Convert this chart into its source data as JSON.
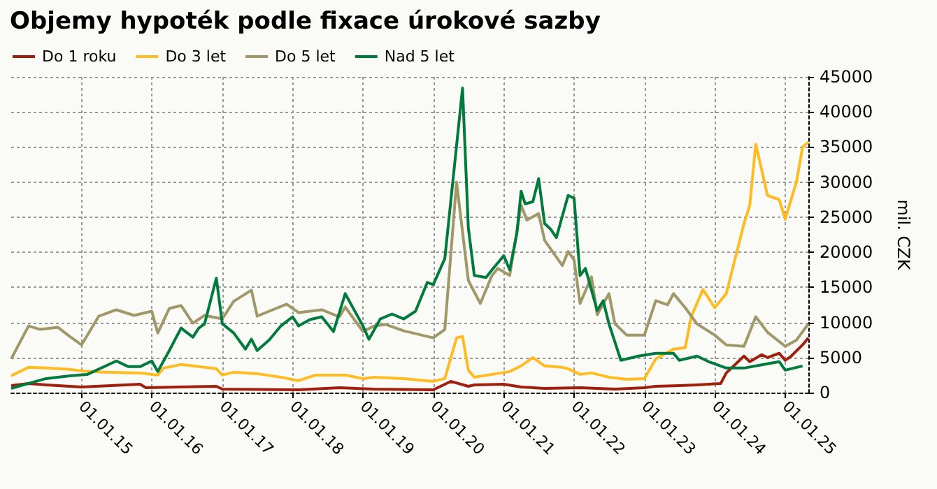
{
  "chart_data": {
    "type": "line",
    "title": "Objemy hypoték podle fixace úrokové sazby",
    "ylabel": "mil. CZK",
    "xlim": [
      "2014-01",
      "2025-05"
    ],
    "xticks": [
      {
        "value": "2015-01-01",
        "label": "01.01.15"
      },
      {
        "value": "2016-01-01",
        "label": "01.01.16"
      },
      {
        "value": "2017-01-01",
        "label": "01.01.17"
      },
      {
        "value": "2018-01-01",
        "label": "01.01.18"
      },
      {
        "value": "2019-01-01",
        "label": "01.01.19"
      },
      {
        "value": "2020-01-01",
        "label": "01.01.20"
      },
      {
        "value": "2021-01-01",
        "label": "01.01.21"
      },
      {
        "value": "2022-01-01",
        "label": "01.01.22"
      },
      {
        "value": "2023-01-01",
        "label": "01.01.23"
      },
      {
        "value": "2024-01-01",
        "label": "01.01.24"
      },
      {
        "value": "2025-01-01",
        "label": "01.01.25"
      }
    ],
    "ylim": [
      0,
      45000
    ],
    "yticks": [
      0,
      5000,
      10000,
      15000,
      20000,
      25000,
      30000,
      35000,
      40000,
      45000
    ],
    "grid": true,
    "legend": "top left",
    "marker": "none",
    "line_style": "solid",
    "series": [
      {
        "name": "Do 1 roku",
        "color": "#a02010",
        "x": [
          "2014-01",
          "2014-04",
          "2014-07",
          "2015-01",
          "2015-11",
          "2015-12",
          "2016-12",
          "2017-01",
          "2018-02",
          "2018-09",
          "2019-03",
          "2020-01",
          "2020-04",
          "2020-07",
          "2020-08",
          "2021-01",
          "2021-04",
          "2021-08",
          "2022-02",
          "2022-08",
          "2023-01",
          "2023-03",
          "2023-07",
          "2023-10",
          "2024-02",
          "2024-03",
          "2024-06",
          "2024-07",
          "2024-09",
          "2024-10",
          "2024-12",
          "2025-01",
          "2025-02",
          "2025-04",
          "2025-05"
        ],
        "values": [
          1000,
          1300,
          1100,
          800,
          1200,
          700,
          900,
          500,
          400,
          700,
          500,
          400,
          1600,
          900,
          1100,
          1200,
          800,
          600,
          700,
          500,
          700,
          900,
          1000,
          1100,
          1300,
          2800,
          5200,
          4400,
          5400,
          5000,
          5600,
          4600,
          5200,
          6800,
          7800
        ]
      },
      {
        "name": "Do 3 let",
        "color": "#ffbb22",
        "x": [
          "2014-01",
          "2014-04",
          "2014-07",
          "2014-11",
          "2015-02",
          "2015-05",
          "2015-11",
          "2016-02",
          "2016-03",
          "2016-06",
          "2016-10",
          "2016-12",
          "2017-01",
          "2017-03",
          "2017-07",
          "2017-11",
          "2018-02",
          "2018-05",
          "2018-10",
          "2019-01",
          "2019-03",
          "2019-08",
          "2020-01",
          "2020-03",
          "2020-05",
          "2020-06",
          "2020-07",
          "2020-08",
          "2020-11",
          "2021-02",
          "2021-04",
          "2021-06",
          "2021-08",
          "2021-11",
          "2021-12",
          "2022-02",
          "2022-04",
          "2022-07",
          "2022-10",
          "2023-01",
          "2023-03",
          "2023-06",
          "2023-08",
          "2023-09",
          "2023-11",
          "2024-01",
          "2024-03",
          "2024-06",
          "2024-07",
          "2024-08",
          "2024-10",
          "2024-12",
          "2025-01",
          "2025-03",
          "2025-04",
          "2025-05"
        ],
        "values": [
          2400,
          3600,
          3500,
          3300,
          3000,
          2900,
          2800,
          2500,
          3500,
          4000,
          3600,
          3400,
          2500,
          2900,
          2700,
          2200,
          1700,
          2500,
          2500,
          2000,
          2200,
          2000,
          1600,
          2000,
          7800,
          8000,
          3200,
          2200,
          2600,
          3000,
          3800,
          5000,
          3800,
          3600,
          3400,
          2600,
          2800,
          2200,
          1900,
          2000,
          4800,
          6200,
          6400,
          10800,
          14700,
          12100,
          14100,
          24100,
          26700,
          35400,
          28100,
          27500,
          24700,
          30100,
          35000,
          35700
        ]
      },
      {
        "name": "Do 5 let",
        "color": "#a09868",
        "x": [
          "2014-01",
          "2014-04",
          "2014-06",
          "2014-09",
          "2014-11",
          "2015-01",
          "2015-04",
          "2015-07",
          "2015-10",
          "2016-01",
          "2016-02",
          "2016-04",
          "2016-06",
          "2016-08",
          "2016-10",
          "2017-01",
          "2017-03",
          "2017-06",
          "2017-07",
          "2017-12",
          "2018-02",
          "2018-06",
          "2018-09",
          "2018-10",
          "2019-01",
          "2019-03",
          "2019-05",
          "2019-08",
          "2020-01",
          "2020-03",
          "2020-05",
          "2020-07",
          "2020-09",
          "2020-11",
          "2020-12",
          "2021-02",
          "2021-04",
          "2021-05",
          "2021-07",
          "2021-08",
          "2021-11",
          "2021-12",
          "2022-01",
          "2022-02",
          "2022-04",
          "2022-05",
          "2022-07",
          "2022-08",
          "2022-10",
          "2023-01",
          "2023-03",
          "2023-05",
          "2023-06",
          "2023-08",
          "2023-10",
          "2024-01",
          "2024-03",
          "2024-06",
          "2024-08",
          "2024-10",
          "2025-01",
          "2025-03",
          "2025-05"
        ],
        "values": [
          4800,
          9500,
          9000,
          9300,
          8000,
          6800,
          10900,
          11800,
          11000,
          11600,
          8500,
          12000,
          12400,
          9900,
          11000,
          10500,
          13000,
          14600,
          10900,
          12600,
          11400,
          11800,
          10800,
          12200,
          8700,
          9500,
          9700,
          8800,
          7800,
          9000,
          30000,
          16000,
          12700,
          16700,
          17700,
          16700,
          26700,
          24600,
          25500,
          21700,
          18100,
          20100,
          18900,
          12700,
          16500,
          11100,
          14100,
          9800,
          8200,
          8200,
          13100,
          12500,
          14100,
          12100,
          9800,
          8200,
          6800,
          6600,
          10800,
          8600,
          6600,
          7500,
          9800
        ]
      },
      {
        "name": "Nad 5 let",
        "color": "#007a3d",
        "x": [
          "2014-01",
          "2014-04",
          "2014-07",
          "2014-11",
          "2015-02",
          "2015-07",
          "2015-09",
          "2015-11",
          "2016-01",
          "2016-02",
          "2016-04",
          "2016-06",
          "2016-08",
          "2016-09",
          "2016-10",
          "2016-12",
          "2017-01",
          "2017-03",
          "2017-05",
          "2017-06",
          "2017-07",
          "2017-09",
          "2017-11",
          "2018-01",
          "2018-02",
          "2018-04",
          "2018-06",
          "2018-08",
          "2018-10",
          "2019-01",
          "2019-02",
          "2019-04",
          "2019-06",
          "2019-08",
          "2019-10",
          "2019-12",
          "2020-01",
          "2020-03",
          "2020-06",
          "2020-07",
          "2020-08",
          "2020-10",
          "2020-11",
          "2021-01",
          "2021-02",
          "2021-03-10",
          "2021-04-01",
          "2021-04-22",
          "2021-06",
          "2021-07",
          "2021-08",
          "2021-09",
          "2021-10",
          "2021-12",
          "2022-01",
          "2022-02",
          "2022-03",
          "2022-05",
          "2022-06",
          "2022-07",
          "2022-09",
          "2022-12",
          "2023-03",
          "2023-06",
          "2023-07",
          "2023-10",
          "2023-12",
          "2024-03",
          "2024-06",
          "2024-10",
          "2024-12",
          "2025-01",
          "2025-04"
        ],
        "values": [
          600,
          1300,
          2000,
          2400,
          2600,
          4500,
          3700,
          3700,
          4500,
          3000,
          6000,
          9200,
          7900,
          9200,
          9800,
          16300,
          9800,
          8500,
          6200,
          7600,
          6000,
          7500,
          9500,
          10800,
          9500,
          10400,
          10800,
          8700,
          14100,
          9500,
          7600,
          10500,
          11200,
          10500,
          11600,
          15700,
          15400,
          19100,
          43400,
          23500,
          16700,
          16400,
          17500,
          19500,
          17500,
          22700,
          28700,
          26900,
          27200,
          30500,
          24100,
          23300,
          22100,
          28100,
          27700,
          16700,
          17700,
          11700,
          13100,
          9800,
          4600,
          5200,
          5600,
          5600,
          4600,
          5200,
          4400,
          3500,
          3500,
          4100,
          4400,
          3200,
          3800
        ]
      }
    ]
  }
}
